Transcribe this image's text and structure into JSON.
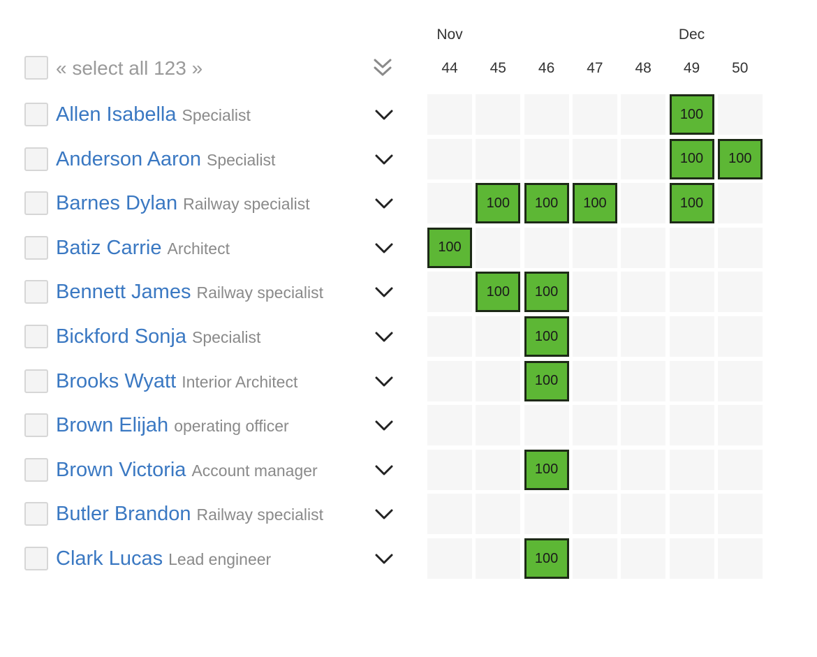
{
  "header": {
    "select_all_label": "« select all 123 »",
    "expand_all_icon": "double-chevron-down-icon",
    "months": [
      {
        "label": "Nov",
        "week": 44
      },
      {
        "label": "Dec",
        "week": 49
      }
    ],
    "weeks": [
      "44",
      "45",
      "46",
      "47",
      "48",
      "49",
      "50"
    ]
  },
  "expand_icon": "chevron-down-icon",
  "colors": {
    "name": "#3a78c2",
    "role": "#8a8a8a",
    "allocation_fill": "#5db735",
    "allocation_border": "#1d2a17",
    "cell_bg": "#f6f6f6"
  },
  "people": [
    {
      "name": "Allen Isabella",
      "role": "Specialist",
      "allocations": [
        {
          "week": 49,
          "value": "100"
        }
      ]
    },
    {
      "name": "Anderson Aaron",
      "role": "Specialist",
      "allocations": [
        {
          "week": 49,
          "value": "100"
        },
        {
          "week": 50,
          "value": "100"
        }
      ]
    },
    {
      "name": "Barnes Dylan",
      "role": "Railway specialist",
      "allocations": [
        {
          "week": 45,
          "value": "100"
        },
        {
          "week": 46,
          "value": "100"
        },
        {
          "week": 47,
          "value": "100"
        },
        {
          "week": 49,
          "value": "100"
        }
      ]
    },
    {
      "name": "Batiz Carrie",
      "role": "Architect",
      "allocations": [
        {
          "week": 44,
          "value": "100"
        }
      ]
    },
    {
      "name": "Bennett James",
      "role": "Railway specialist",
      "allocations": [
        {
          "week": 45,
          "value": "100"
        },
        {
          "week": 46,
          "value": "100"
        }
      ]
    },
    {
      "name": "Bickford Sonja",
      "role": "Specialist",
      "allocations": [
        {
          "week": 46,
          "value": "100"
        }
      ]
    },
    {
      "name": "Brooks Wyatt",
      "role": "Interior Architect",
      "allocations": [
        {
          "week": 46,
          "value": "100"
        }
      ]
    },
    {
      "name": "Brown Elijah",
      "role": "operating officer",
      "allocations": []
    },
    {
      "name": "Brown Victoria",
      "role": "Account manager",
      "allocations": [
        {
          "week": 46,
          "value": "100"
        }
      ]
    },
    {
      "name": "Butler Brandon",
      "role": "Railway specialist",
      "allocations": []
    },
    {
      "name": "Clark Lucas",
      "role": "Lead engineer",
      "allocations": [
        {
          "week": 46,
          "value": "100"
        }
      ]
    }
  ]
}
